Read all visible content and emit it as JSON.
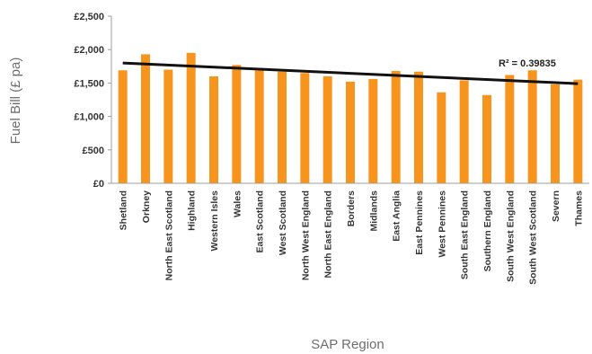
{
  "chart_data": {
    "type": "bar",
    "ylabel": "Fuel Bill (£ pa)",
    "xlabel": "SAP Region",
    "ylim": [
      0,
      2500
    ],
    "yticks": [
      "£0",
      "£500",
      "£1,000",
      "£1,500",
      "£2,000",
      "£2,500"
    ],
    "categories": [
      "Shetland",
      "Orkney",
      "North East Scotland",
      "Highland",
      "Western Isles",
      "Wales",
      "East Scotland",
      "West Scotland",
      "North West England",
      "North East England",
      "Borders",
      "Midlands",
      "East Anglia",
      "East Pennines",
      "West Pennines",
      "South East England",
      "Southern England",
      "South West England",
      "South West Scotland",
      "Severn",
      "Thames"
    ],
    "values": [
      1690,
      1930,
      1700,
      1950,
      1600,
      1770,
      1690,
      1670,
      1650,
      1600,
      1520,
      1560,
      1680,
      1670,
      1360,
      1540,
      1320,
      1620,
      1690,
      1480,
      1550
    ],
    "trendline": {
      "start": 1800,
      "end": 1490
    },
    "annotation": "R² = 0.39835",
    "grid": false,
    "colors": {
      "bar": "#f7941d",
      "trend": "#111111",
      "axis": "#9e9e9e"
    }
  }
}
